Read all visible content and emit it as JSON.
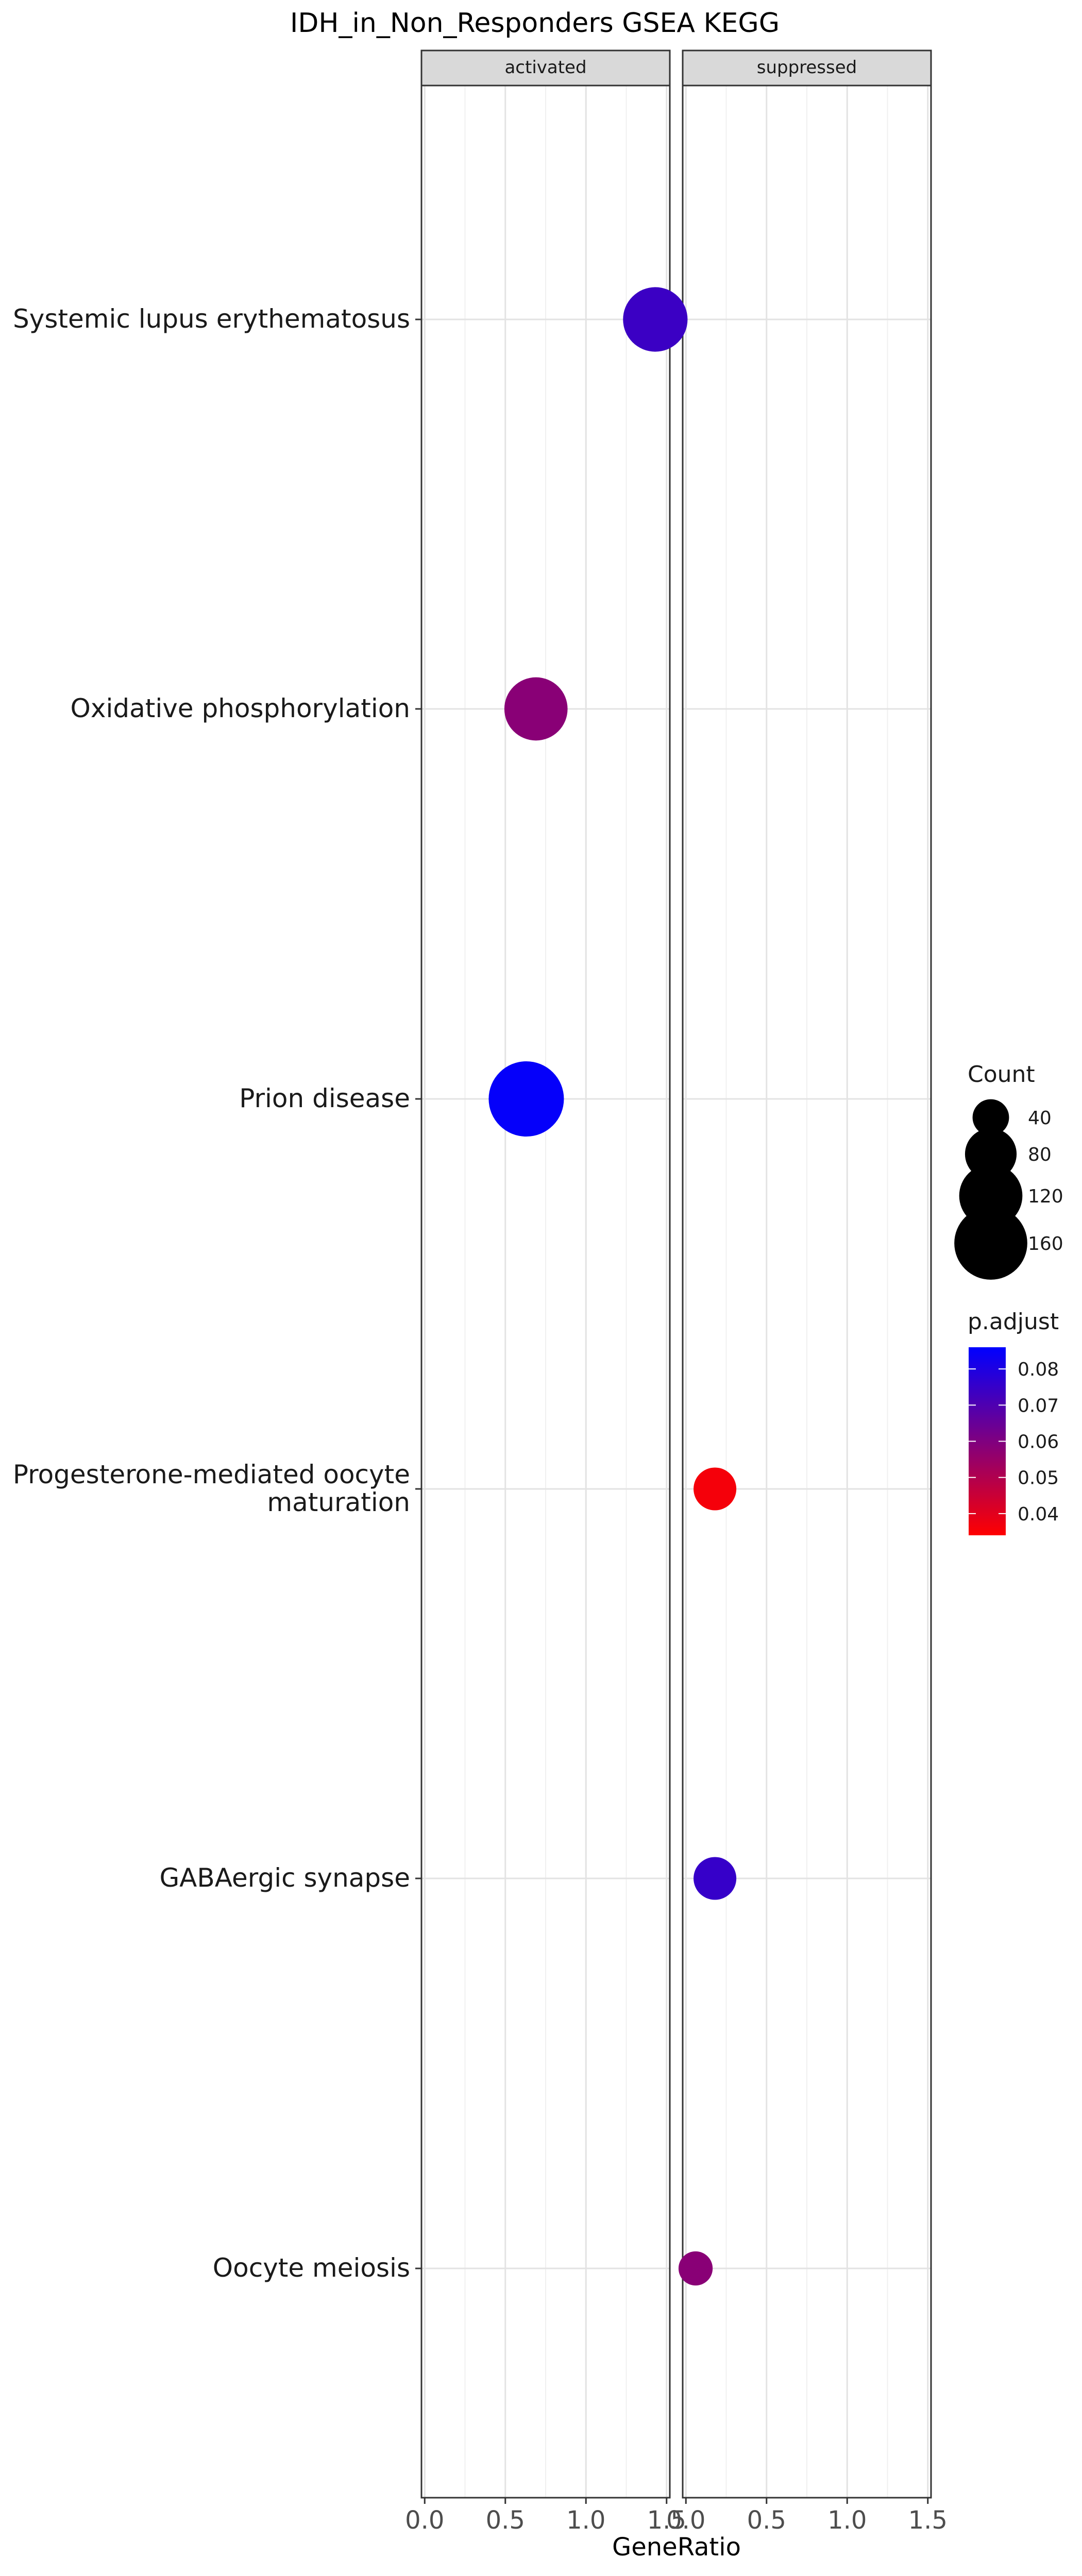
{
  "chart_data": {
    "type": "scatter",
    "title": "IDH_in_Non_Responders GSEA KEGG",
    "xlabel": "GeneRatio",
    "ylabel": "",
    "facets": [
      "activated",
      "suppressed"
    ],
    "xlim": [
      -0.02,
      1.52
    ],
    "x_ticks": [
      0.0,
      0.5,
      1.0,
      1.5
    ],
    "x_tick_labels": [
      "0.0",
      "0.5",
      "1.0",
      "1.5"
    ],
    "grid": true,
    "categories": [
      "Systemic lupus erythematosus",
      "Oxidative phosphorylation",
      "Prion disease",
      "Progesterone-mediated oocyte maturation",
      "GABAergic synapse",
      "Oocyte meiosis"
    ],
    "category_labels": [
      [
        "Systemic lupus erythematosus"
      ],
      [
        "Oxidative phosphorylation"
      ],
      [
        "Prion disease"
      ],
      [
        "Progesterone-mediated oocyte",
        "maturation"
      ],
      [
        "GABAergic synapse"
      ],
      [
        "Oocyte meiosis"
      ]
    ],
    "points": [
      {
        "category": "Systemic lupus erythematosus",
        "facet": "activated",
        "x": 1.43,
        "count": 125,
        "p_adjust": 0.074
      },
      {
        "category": "Oxidative phosphorylation",
        "facet": "activated",
        "x": 0.69,
        "count": 120,
        "p_adjust": 0.058
      },
      {
        "category": "Prion disease",
        "facet": "activated",
        "x": 0.63,
        "count": 170,
        "p_adjust": 0.085
      },
      {
        "category": "Progesterone-mediated oocyte maturation",
        "facet": "suppressed",
        "x": 0.18,
        "count": 55,
        "p_adjust": 0.036
      },
      {
        "category": "GABAergic synapse",
        "facet": "suppressed",
        "x": 0.18,
        "count": 55,
        "p_adjust": 0.075
      },
      {
        "category": "Oocyte meiosis",
        "facet": "suppressed",
        "x": 0.06,
        "count": 35,
        "p_adjust": 0.058
      }
    ],
    "legend": {
      "position": "right",
      "size_title": "Count",
      "size_values": [
        40,
        80,
        120,
        160
      ],
      "size_labels": [
        "40",
        "80",
        "120",
        "160"
      ],
      "color_title": "p.adjust",
      "color_range": [
        0.034,
        0.086
      ],
      "color_ticks": [
        0.04,
        0.05,
        0.06,
        0.07,
        0.08
      ],
      "color_tick_labels": [
        "0.04",
        "0.05",
        "0.06",
        "0.07",
        "0.08"
      ],
      "color_low": "#ff0000",
      "color_high": "#0000ff"
    }
  }
}
